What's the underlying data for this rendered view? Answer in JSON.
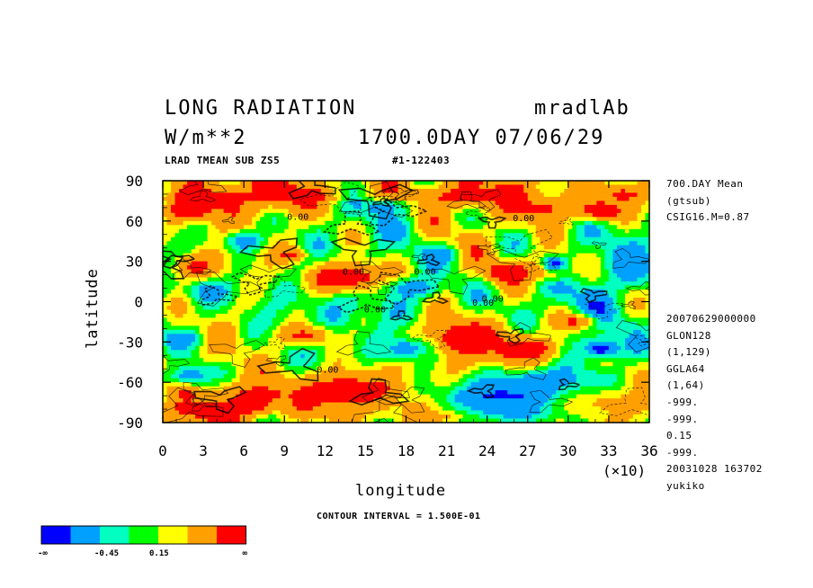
{
  "header": {
    "title": "LONG RADIATION",
    "run": "mradlAb",
    "units": "W/m**2",
    "time": "1700.0DAY 07/06/29",
    "subtitle": "LRAD TMEAN SUB ZS5",
    "id": "#1-122403"
  },
  "side_info": {
    "top": [
      "700.DAY Mean",
      "(gtsub)",
      "CSIG16.M=0.87"
    ],
    "bottom": [
      "20070629000000",
      "GLON128",
      "(1,129)",
      "GGLA64",
      "(1,64)",
      "-999.",
      "-999.",
      "0.15",
      "-999.",
      "20031028 163702",
      "yukiko"
    ]
  },
  "footer": {
    "contour_interval": "CONTOUR INTERVAL = 1.500E-01"
  },
  "colorbar": {
    "colors": [
      "#0000ff",
      "#00a0ff",
      "#00ffc0",
      "#00ff00",
      "#ffff00",
      "#ffa000",
      "#ff0000"
    ],
    "labels": [
      "-∞",
      "-0.45",
      "0.15",
      "∞"
    ]
  },
  "chart_data": {
    "type": "heatmap",
    "title": "LONG RADIATION",
    "xlabel": "longitude",
    "ylabel": "latitude",
    "x_multiplier": "(×10)",
    "xlim": [
      0,
      36
    ],
    "ylim": [
      -90,
      90
    ],
    "x_ticks": [
      "0",
      "3",
      "6",
      "9",
      "12",
      "15",
      "18",
      "21",
      "24",
      "27",
      "30",
      "33",
      "36"
    ],
    "y_ticks": [
      "90",
      "60",
      "30",
      "0",
      "-30",
      "-60",
      "-90"
    ],
    "contour_labels": [
      "0.00",
      "0.00",
      "0.00",
      "0.00",
      "0.00",
      "0.00",
      "0.00",
      "0.00"
    ],
    "features": [
      {
        "lon": 2.0,
        "lat": 70,
        "level": 6,
        "rx": 1.8,
        "ry": 10
      },
      {
        "lon": 4.5,
        "lat": 75,
        "level": 5,
        "rx": 2.5,
        "ry": 12
      },
      {
        "lon": 9.5,
        "lat": 78,
        "level": 5,
        "rx": 3.5,
        "ry": 10
      },
      {
        "lon": 16.5,
        "lat": 70,
        "level": 1,
        "rx": 1.5,
        "ry": 6
      },
      {
        "lon": 22.0,
        "lat": 78,
        "level": 5,
        "rx": 3.5,
        "ry": 10
      },
      {
        "lon": 28.0,
        "lat": 70,
        "level": 5,
        "rx": 3.0,
        "ry": 10
      },
      {
        "lon": 32.5,
        "lat": 68,
        "level": 6,
        "rx": 1.8,
        "ry": 8
      },
      {
        "lon": 34.0,
        "lat": 80,
        "level": 5,
        "rx": 2.0,
        "ry": 8
      },
      {
        "lon": 6.0,
        "lat": 45,
        "level": 1,
        "rx": 1.5,
        "ry": 8
      },
      {
        "lon": 13.0,
        "lat": 18,
        "level": 6,
        "rx": 2.2,
        "ry": 10
      },
      {
        "lon": 14.5,
        "lat": 18,
        "level": 5,
        "rx": 3.0,
        "ry": 12
      },
      {
        "lon": 25.5,
        "lat": 22,
        "level": 6,
        "rx": 1.6,
        "ry": 8
      },
      {
        "lon": 28.5,
        "lat": 25,
        "level": 5,
        "rx": 2.2,
        "ry": 10
      },
      {
        "lon": 2.5,
        "lat": 25,
        "level": 5,
        "rx": 2.0,
        "ry": 10
      },
      {
        "lon": 29.0,
        "lat": 28,
        "level": 0,
        "rx": 1.0,
        "ry": 6
      },
      {
        "lon": 3.5,
        "lat": 8,
        "level": 1,
        "rx": 1.5,
        "ry": 8
      },
      {
        "lon": 18.5,
        "lat": 10,
        "level": 1,
        "rx": 2.0,
        "ry": 8
      },
      {
        "lon": 22.0,
        "lat": -28,
        "level": 6,
        "rx": 1.8,
        "ry": 10
      },
      {
        "lon": 23.0,
        "lat": -25,
        "level": 5,
        "rx": 3.0,
        "ry": 14
      },
      {
        "lon": 27.0,
        "lat": -35,
        "level": 6,
        "rx": 1.8,
        "ry": 8
      },
      {
        "lon": 26.5,
        "lat": -38,
        "level": 5,
        "rx": 3.0,
        "ry": 12
      },
      {
        "lon": 10.5,
        "lat": -25,
        "level": 5,
        "rx": 2.2,
        "ry": 8
      },
      {
        "lon": 1.5,
        "lat": -28,
        "level": 1,
        "rx": 1.5,
        "ry": 6
      },
      {
        "lon": 13.5,
        "lat": -68,
        "level": 6,
        "rx": 2.5,
        "ry": 10
      },
      {
        "lon": 13.5,
        "lat": -65,
        "level": 5,
        "rx": 4.5,
        "ry": 16
      },
      {
        "lon": 6.5,
        "lat": -78,
        "level": 6,
        "rx": 1.5,
        "ry": 6
      },
      {
        "lon": 7.0,
        "lat": -70,
        "level": 5,
        "rx": 4.0,
        "ry": 14
      },
      {
        "lon": 2.5,
        "lat": -82,
        "level": 5,
        "rx": 2.5,
        "ry": 8
      },
      {
        "lon": 25.5,
        "lat": -70,
        "level": 0,
        "rx": 4.5,
        "ry": 10
      },
      {
        "lon": 28.0,
        "lat": -60,
        "level": 1,
        "rx": 5.0,
        "ry": 10
      },
      {
        "lon": 25.0,
        "lat": -82,
        "level": 1,
        "rx": 5.0,
        "ry": 8
      },
      {
        "lon": 33.0,
        "lat": -75,
        "level": 4,
        "rx": 3.5,
        "ry": 12
      },
      {
        "lon": 20.0,
        "lat": -85,
        "level": 4,
        "rx": 3.0,
        "ry": 5
      },
      {
        "lon": 32.5,
        "lat": -35,
        "level": 0,
        "rx": 1.5,
        "ry": 8
      },
      {
        "lon": 34.5,
        "lat": 28,
        "level": 1,
        "rx": 1.8,
        "ry": 15
      },
      {
        "lon": 18.0,
        "lat": -35,
        "level": 1,
        "rx": 1.8,
        "ry": 8
      },
      {
        "lon": 2.0,
        "lat": -55,
        "level": 1,
        "rx": 1.8,
        "ry": 8
      },
      {
        "lon": 20.5,
        "lat": 35,
        "level": 1,
        "rx": 1.5,
        "ry": 6
      },
      {
        "lon": 9.5,
        "lat": 35,
        "level": 5,
        "rx": 1.2,
        "ry": 6
      },
      {
        "lon": 30.5,
        "lat": -15,
        "level": 5,
        "rx": 1.5,
        "ry": 6
      }
    ]
  }
}
